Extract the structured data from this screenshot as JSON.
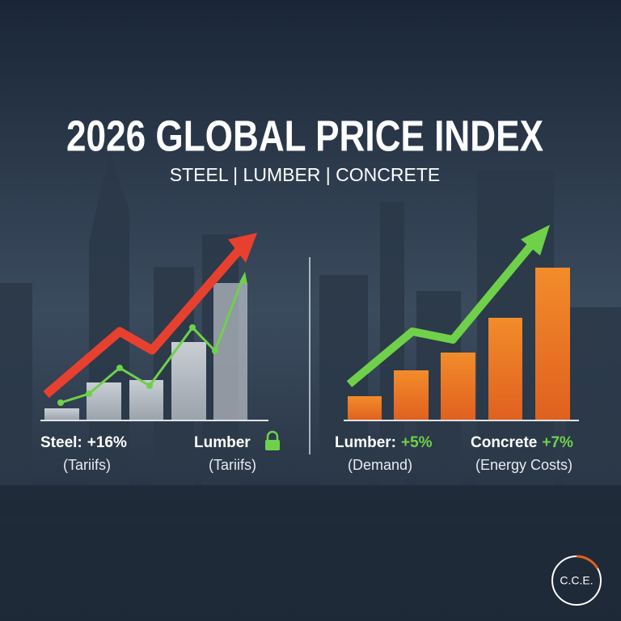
{
  "header": {
    "title": "2026 GLOBAL PRICE INDEX",
    "subtitle": "STEEL | LUMBER | CONCRETE"
  },
  "left_panel": {
    "items": [
      {
        "label": "Steel:",
        "change": "+16%",
        "note": "(Tariifs)"
      },
      {
        "label": "Lumber",
        "note": "(Tariifs)"
      }
    ]
  },
  "right_panel": {
    "items": [
      {
        "label": "Lumber:",
        "change": "+5%",
        "note": "(Demand)"
      },
      {
        "label": "Concrete",
        "change": "+7%",
        "note": "(Energy Costs)"
      }
    ]
  },
  "logo": {
    "text": "C.C.E."
  }
}
